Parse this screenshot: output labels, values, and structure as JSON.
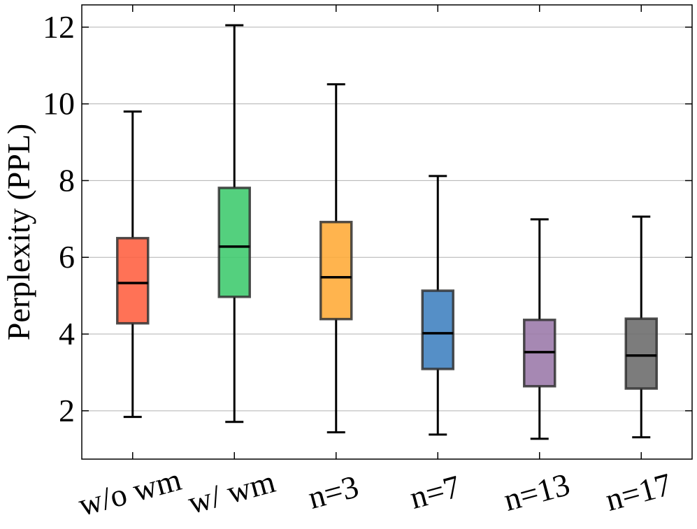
{
  "chart_data": {
    "type": "box",
    "ylabel": "Perplexity (PPL)",
    "categories": [
      "w/o wm",
      "w/ wm",
      "n=3",
      "n=7",
      "n=13",
      "n=17"
    ],
    "colors": [
      "#ff5e3f",
      "#3cc96c",
      "#ffaa36",
      "#3d7fbf",
      "#9a78a8",
      "#6a6a6a"
    ],
    "values": [
      {
        "low": 1.84,
        "q1": 4.28,
        "median": 5.33,
        "q3": 6.5,
        "high": 9.8
      },
      {
        "low": 1.71,
        "q1": 4.97,
        "median": 6.28,
        "q3": 7.81,
        "high": 12.05
      },
      {
        "low": 1.44,
        "q1": 4.39,
        "median": 5.48,
        "q3": 6.92,
        "high": 10.51
      },
      {
        "low": 1.38,
        "q1": 3.09,
        "median": 4.02,
        "q3": 5.13,
        "high": 8.12
      },
      {
        "low": 1.27,
        "q1": 2.64,
        "median": 3.53,
        "q3": 4.37,
        "high": 6.99
      },
      {
        "low": 1.31,
        "q1": 2.58,
        "median": 3.44,
        "q3": 4.4,
        "high": 7.06
      }
    ],
    "ylim": [
      0.74,
      12.58
    ],
    "yticks": [
      2,
      4,
      6,
      8,
      10,
      12
    ],
    "grid": true
  }
}
